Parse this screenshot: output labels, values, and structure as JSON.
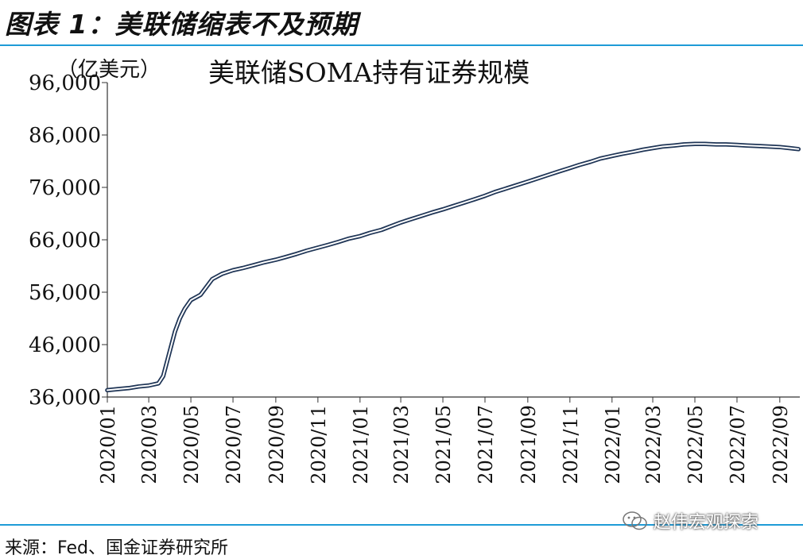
{
  "header": {
    "title": "图表 1：美联储缩表不及预期"
  },
  "footer": {
    "source": "来源：Fed、国金证券研究所",
    "watermark": "赵伟宏观探索",
    "watermark_icon": "wechat-icon"
  },
  "colors": {
    "rule": "#1e9bd7",
    "line": "#1f3556"
  },
  "chart_data": {
    "type": "line",
    "title": "美联储SOMA持有证券规模",
    "unit_label": "（亿美元）",
    "xlabel": "",
    "ylabel": "",
    "ylim": [
      36000,
      96000
    ],
    "yticks": [
      "36,000",
      "46,000",
      "56,000",
      "66,000",
      "76,000",
      "86,000",
      "96,000"
    ],
    "xticks": [
      "2020/01",
      "2020/03",
      "2020/05",
      "2020/07",
      "2020/09",
      "2020/11",
      "2021/01",
      "2021/03",
      "2021/05",
      "2021/07",
      "2021/09",
      "2021/11",
      "2022/01",
      "2022/03",
      "2022/05",
      "2022/07",
      "2022/09"
    ],
    "grid": false,
    "legend": "none",
    "series": [
      {
        "x": [
          "2020/01/01",
          "2020/01/15",
          "2020/02/01",
          "2020/02/15",
          "2020/03/01",
          "2020/03/15",
          "2020/03/22",
          "2020/04/01",
          "2020/04/08",
          "2020/04/15",
          "2020/04/22",
          "2020/05/01",
          "2020/05/15",
          "2020/06/01",
          "2020/06/15",
          "2020/07/01",
          "2020/07/15",
          "2020/08/01",
          "2020/08/15",
          "2020/09/01",
          "2020/09/15",
          "2020/10/01",
          "2020/10/15",
          "2020/11/01",
          "2020/11/15",
          "2020/12/01",
          "2020/12/15",
          "2021/01/01",
          "2021/01/15",
          "2021/02/01",
          "2021/02/15",
          "2021/03/01",
          "2021/03/15",
          "2021/04/01",
          "2021/04/15",
          "2021/05/01",
          "2021/05/15",
          "2021/06/01",
          "2021/06/15",
          "2021/07/01",
          "2021/07/15",
          "2021/08/01",
          "2021/08/15",
          "2021/09/01",
          "2021/09/15",
          "2021/10/01",
          "2021/10/15",
          "2021/11/01",
          "2021/11/15",
          "2021/12/01",
          "2021/12/15",
          "2022/01/01",
          "2022/01/15",
          "2022/02/01",
          "2022/02/15",
          "2022/03/01",
          "2022/03/15",
          "2022/04/01",
          "2022/04/15",
          "2022/05/01",
          "2022/05/15",
          "2022/06/01",
          "2022/06/15",
          "2022/07/01",
          "2022/07/15",
          "2022/08/01",
          "2022/08/15",
          "2022/09/01",
          "2022/09/15",
          "2022/09/28"
        ],
        "values": [
          37300,
          37500,
          37700,
          38000,
          38200,
          38600,
          40000,
          45000,
          48500,
          51000,
          52800,
          54500,
          55500,
          58500,
          59500,
          60200,
          60600,
          61200,
          61700,
          62200,
          62700,
          63300,
          63900,
          64500,
          65000,
          65600,
          66200,
          66700,
          67300,
          67900,
          68600,
          69300,
          69900,
          70600,
          71200,
          71800,
          72400,
          73100,
          73700,
          74400,
          75100,
          75800,
          76400,
          77100,
          77700,
          78400,
          79000,
          79700,
          80300,
          80900,
          81500,
          82000,
          82400,
          82800,
          83200,
          83500,
          83800,
          84000,
          84200,
          84300,
          84300,
          84200,
          84200,
          84100,
          84000,
          83900,
          83800,
          83700,
          83500,
          83300
        ]
      }
    ]
  }
}
